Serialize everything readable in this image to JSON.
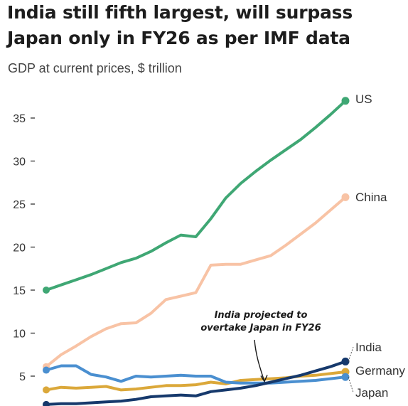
{
  "title": "India still fifth largest, will surpass Japan only in FY26 as per IMF data",
  "subtitle": "GDP at current prices, $ trillion",
  "chart_data": {
    "type": "line",
    "title": "India still fifth largest, will surpass Japan only in FY26 as per IMF data",
    "subtitle": "GDP at current prices, $ trillion",
    "xlabel": "",
    "ylabel": "",
    "ylim": [
      0,
      38
    ],
    "yticks": [
      5,
      10,
      15,
      20,
      25,
      30,
      35
    ],
    "grid": false,
    "legend": "direct labels at line ends",
    "x": [
      0,
      1,
      2,
      3,
      4,
      5,
      6,
      7,
      8,
      9,
      10,
      11,
      12,
      13,
      14,
      15,
      16,
      17,
      18,
      19,
      20
    ],
    "series": [
      {
        "name": "US",
        "color": "#3fa774",
        "values": [
          15.0,
          15.6,
          16.2,
          16.8,
          17.5,
          18.2,
          18.7,
          19.5,
          20.5,
          21.4,
          21.2,
          23.3,
          25.7,
          27.4,
          28.8,
          30.1,
          31.3,
          32.5,
          33.9,
          35.4,
          37.0
        ],
        "end_marker": true
      },
      {
        "name": "China",
        "color": "#f8c3a5",
        "values": [
          6.1,
          7.5,
          8.5,
          9.6,
          10.5,
          11.1,
          11.2,
          12.3,
          13.9,
          14.3,
          14.7,
          17.9,
          18.0,
          18.0,
          18.5,
          19.0,
          20.2,
          21.5,
          22.8,
          24.3,
          25.8
        ],
        "end_marker": true
      },
      {
        "name": "India",
        "color": "#16396c",
        "values": [
          1.7,
          1.8,
          1.8,
          1.9,
          2.0,
          2.1,
          2.3,
          2.6,
          2.7,
          2.8,
          2.7,
          3.2,
          3.4,
          3.6,
          3.9,
          4.3,
          4.7,
          5.1,
          5.6,
          6.1,
          6.7
        ],
        "end_marker": true
      },
      {
        "name": "Germany",
        "color": "#dba83a",
        "values": [
          3.4,
          3.7,
          3.6,
          3.7,
          3.8,
          3.4,
          3.5,
          3.7,
          3.9,
          3.9,
          4.0,
          4.3,
          4.1,
          4.5,
          4.6,
          4.7,
          4.8,
          5.0,
          5.1,
          5.3,
          5.5
        ],
        "end_marker": true
      },
      {
        "name": "Japan",
        "color": "#4a8fd0",
        "values": [
          5.7,
          6.2,
          6.2,
          5.2,
          4.9,
          4.4,
          5.0,
          4.9,
          5.0,
          5.1,
          5.0,
          5.0,
          4.3,
          4.2,
          4.2,
          4.2,
          4.3,
          4.4,
          4.5,
          4.7,
          4.9
        ],
        "end_marker": true
      }
    ],
    "annotations": [
      {
        "text_lines": [
          "India projected to",
          "overtake Japan in FY26"
        ],
        "points_to": {
          "x": 15,
          "y": 4.3
        }
      }
    ]
  }
}
